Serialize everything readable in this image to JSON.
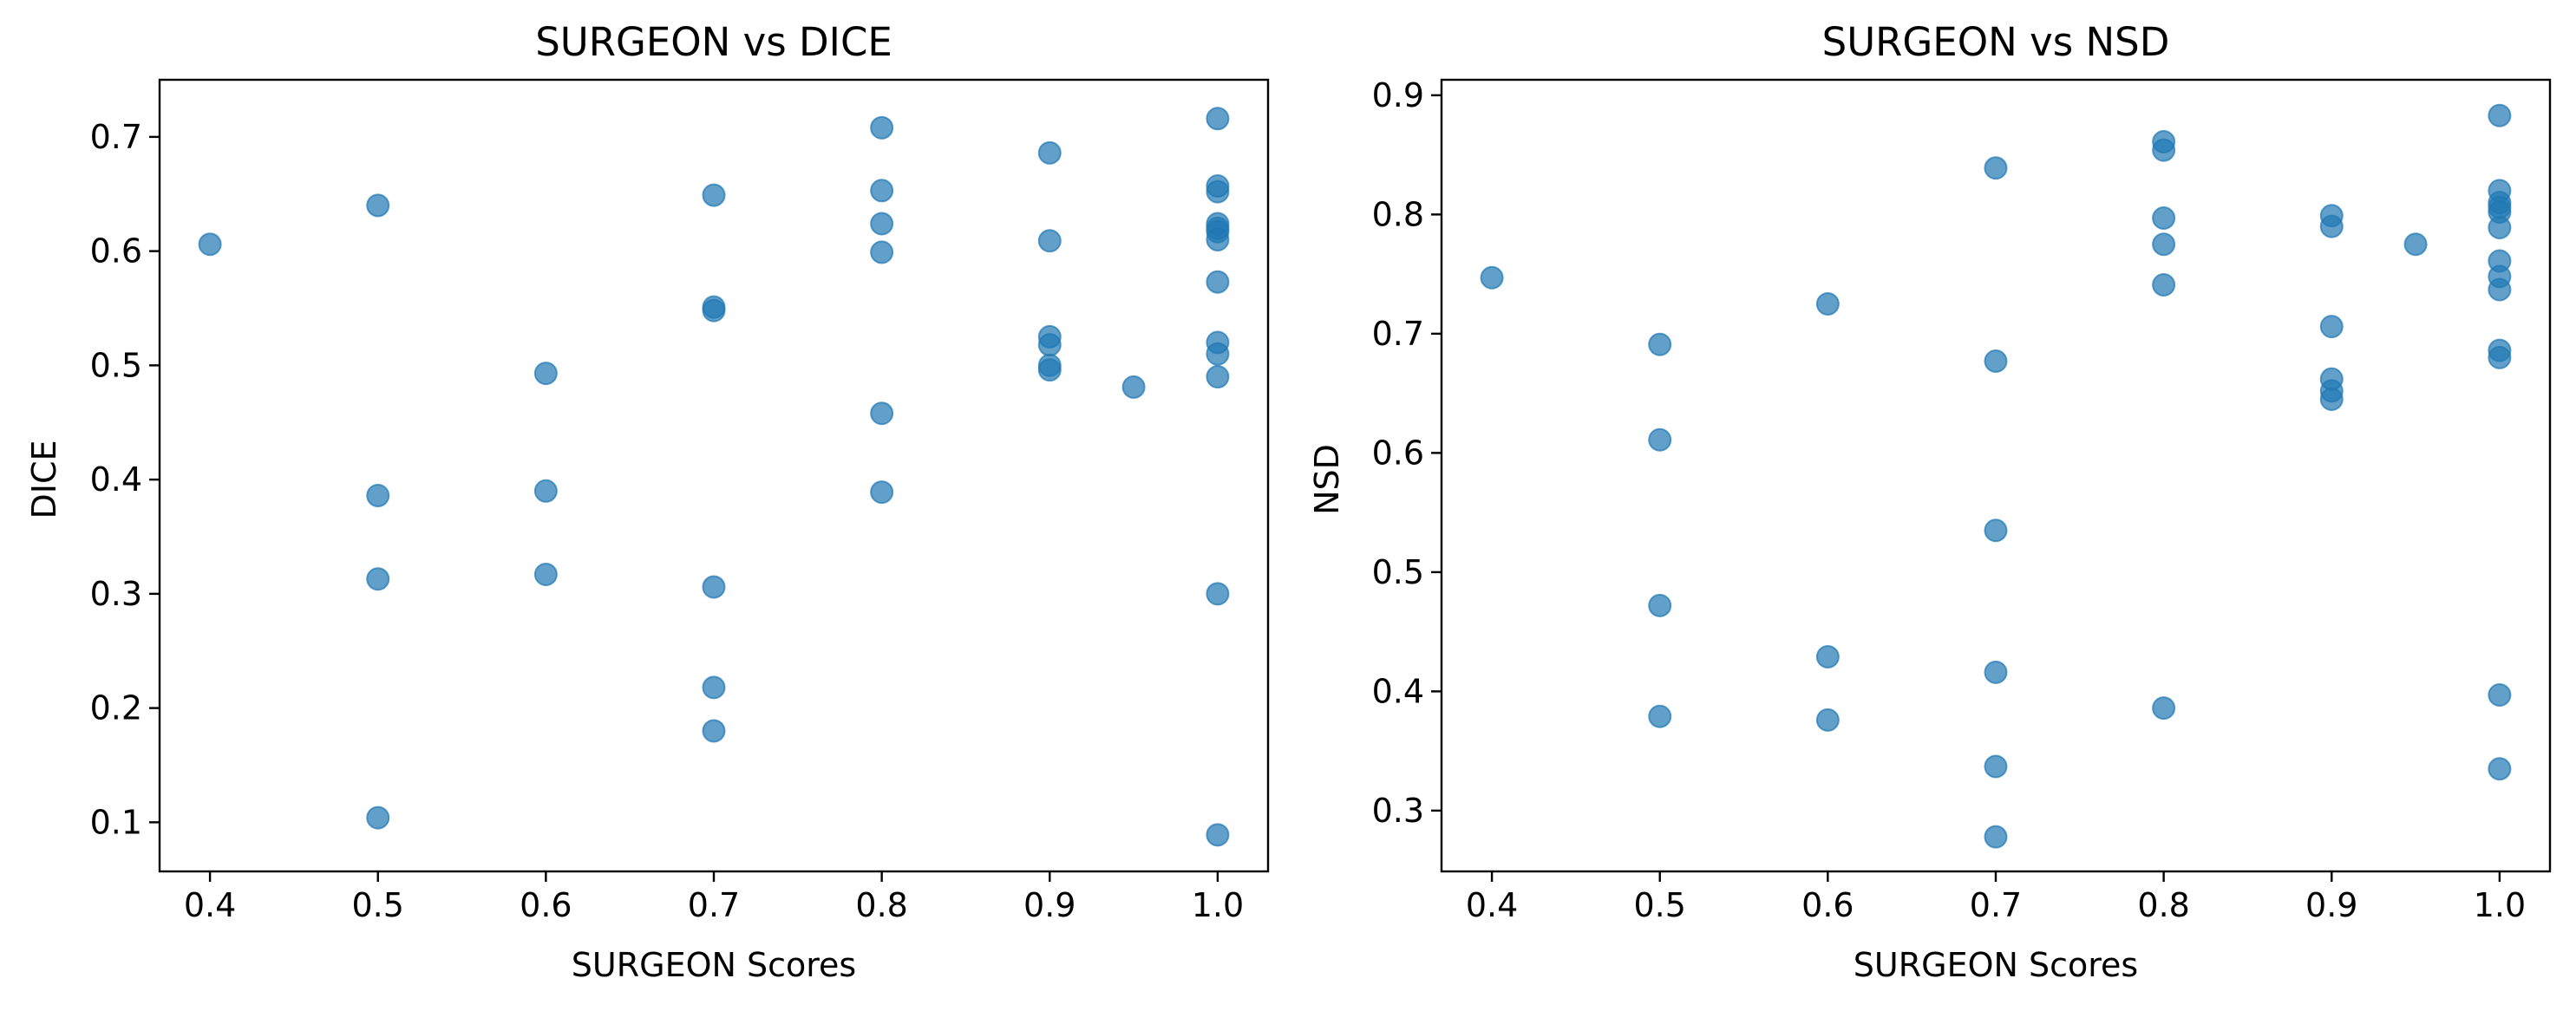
{
  "chart_data": [
    {
      "type": "scatter",
      "title": "SURGEON vs DICE",
      "xlabel": "SURGEON Scores",
      "ylabel": "DICE",
      "xlim": [
        0.37,
        1.03
      ],
      "ylim": [
        0.057,
        0.75
      ],
      "xticks": [
        "0.4",
        "0.5",
        "0.6",
        "0.7",
        "0.8",
        "0.9",
        "1.0"
      ],
      "yticks": [
        "0.1",
        "0.2",
        "0.3",
        "0.4",
        "0.5",
        "0.6",
        "0.7"
      ],
      "grid": false,
      "color": "#1f77b4",
      "alpha": 0.7,
      "points": [
        [
          0.4,
          0.606
        ],
        [
          0.5,
          0.64
        ],
        [
          0.5,
          0.386
        ],
        [
          0.5,
          0.313
        ],
        [
          0.5,
          0.104
        ],
        [
          0.6,
          0.493
        ],
        [
          0.6,
          0.39
        ],
        [
          0.6,
          0.317
        ],
        [
          0.7,
          0.649
        ],
        [
          0.7,
          0.551
        ],
        [
          0.7,
          0.548
        ],
        [
          0.7,
          0.306
        ],
        [
          0.7,
          0.218
        ],
        [
          0.7,
          0.18
        ],
        [
          0.8,
          0.708
        ],
        [
          0.8,
          0.653
        ],
        [
          0.8,
          0.624
        ],
        [
          0.8,
          0.599
        ],
        [
          0.8,
          0.458
        ],
        [
          0.8,
          0.389
        ],
        [
          0.9,
          0.686
        ],
        [
          0.9,
          0.609
        ],
        [
          0.9,
          0.525
        ],
        [
          0.9,
          0.518
        ],
        [
          0.9,
          0.5
        ],
        [
          0.9,
          0.496
        ],
        [
          0.95,
          0.481
        ],
        [
          1.0,
          0.716
        ],
        [
          1.0,
          0.657
        ],
        [
          1.0,
          0.652
        ],
        [
          1.0,
          0.624
        ],
        [
          1.0,
          0.62
        ],
        [
          1.0,
          0.617
        ],
        [
          1.0,
          0.61
        ],
        [
          1.0,
          0.573
        ],
        [
          1.0,
          0.52
        ],
        [
          1.0,
          0.51
        ],
        [
          1.0,
          0.49
        ],
        [
          1.0,
          0.3
        ],
        [
          1.0,
          0.089
        ]
      ]
    },
    {
      "type": "scatter",
      "title": "SURGEON vs NSD",
      "xlabel": "SURGEON Scores",
      "ylabel": "NSD",
      "xlim": [
        0.37,
        1.03
      ],
      "ylim": [
        0.249,
        0.913
      ],
      "xticks": [
        "0.4",
        "0.5",
        "0.6",
        "0.7",
        "0.8",
        "0.9",
        "1.0"
      ],
      "yticks": [
        "0.3",
        "0.4",
        "0.5",
        "0.6",
        "0.7",
        "0.8",
        "0.9"
      ],
      "grid": false,
      "color": "#1f77b4",
      "alpha": 0.7,
      "points": [
        [
          0.4,
          0.747
        ],
        [
          0.5,
          0.691
        ],
        [
          0.5,
          0.611
        ],
        [
          0.5,
          0.472
        ],
        [
          0.5,
          0.379
        ],
        [
          0.6,
          0.725
        ],
        [
          0.6,
          0.429
        ],
        [
          0.6,
          0.376
        ],
        [
          0.7,
          0.839
        ],
        [
          0.7,
          0.677
        ],
        [
          0.7,
          0.535
        ],
        [
          0.7,
          0.416
        ],
        [
          0.7,
          0.337
        ],
        [
          0.7,
          0.278
        ],
        [
          0.8,
          0.861
        ],
        [
          0.8,
          0.854
        ],
        [
          0.8,
          0.797
        ],
        [
          0.8,
          0.775
        ],
        [
          0.8,
          0.741
        ],
        [
          0.8,
          0.386
        ],
        [
          0.9,
          0.799
        ],
        [
          0.9,
          0.79
        ],
        [
          0.9,
          0.706
        ],
        [
          0.9,
          0.662
        ],
        [
          0.9,
          0.652
        ],
        [
          0.9,
          0.645
        ],
        [
          0.95,
          0.775
        ],
        [
          1.0,
          0.883
        ],
        [
          1.0,
          0.82
        ],
        [
          1.0,
          0.81
        ],
        [
          1.0,
          0.806
        ],
        [
          1.0,
          0.802
        ],
        [
          1.0,
          0.789
        ],
        [
          1.0,
          0.761
        ],
        [
          1.0,
          0.748
        ],
        [
          1.0,
          0.737
        ],
        [
          1.0,
          0.686
        ],
        [
          1.0,
          0.68
        ],
        [
          1.0,
          0.397
        ],
        [
          1.0,
          0.335
        ]
      ]
    }
  ]
}
